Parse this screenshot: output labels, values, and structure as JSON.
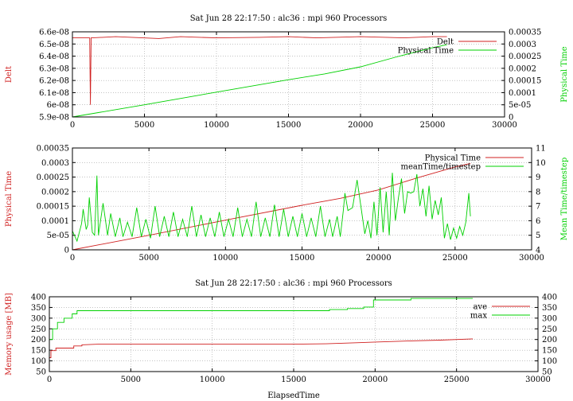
{
  "colors": {
    "red": "#d02020",
    "green": "#00d000"
  },
  "chart_data": [
    {
      "type": "line",
      "title": "Sat Jun 28 22:17:50 : alc36 : mpi 960 Processors",
      "xlabel": "",
      "ylabel": "Delt",
      "y2label": "Physical Time",
      "xlim": [
        0,
        30000
      ],
      "ylim": [
        5.9e-08,
        6.6e-08
      ],
      "y2lim": [
        0,
        0.00035
      ],
      "xticks": [
        0,
        5000,
        10000,
        15000,
        20000,
        25000,
        30000
      ],
      "xtick_labels": [
        "0",
        "5000",
        "10000",
        "15000",
        "20000",
        "25000",
        "30000"
      ],
      "yticks": [
        5.9e-08,
        6e-08,
        6.1e-08,
        6.2e-08,
        6.3e-08,
        6.4e-08,
        6.5e-08,
        6.6e-08
      ],
      "ytick_labels": [
        "5.9e-08",
        "6e-08",
        "6.1e-08",
        "6.2e-08",
        "6.3e-08",
        "6.4e-08",
        "6.5e-08",
        "6.6e-08"
      ],
      "y2ticks": [
        0,
        5e-05,
        0.0001,
        0.00015,
        0.0002,
        0.00025,
        0.0003,
        0.00035
      ],
      "y2tick_labels": [
        "0",
        "5e-05",
        "0.0001",
        "0.00015",
        "0.0002",
        "0.00025",
        "0.0003",
        "0.00035"
      ],
      "grid": true,
      "legend": "top-right",
      "series": [
        {
          "name": "Delt",
          "axis": "y",
          "color": "red",
          "x": [
            0,
            1200,
            1250,
            1300,
            1350,
            3000,
            6000,
            7500,
            10000,
            13000,
            15000,
            17000,
            20000,
            23000,
            25000,
            26000
          ],
          "y": [
            6.55e-08,
            6.55e-08,
            6e-08,
            6.55e-08,
            6.55e-08,
            6.56e-08,
            6.545e-08,
            6.56e-08,
            6.55e-08,
            6.555e-08,
            6.56e-08,
            6.55e-08,
            6.56e-08,
            6.55e-08,
            6.56e-08,
            6.56e-08
          ]
        },
        {
          "name": "Physical Time",
          "axis": "y2",
          "color": "green",
          "x": [
            0,
            5000,
            10000,
            15000,
            17500,
            20000,
            22500,
            25000,
            26000
          ],
          "y": [
            0,
            5e-05,
            0.000102,
            0.000153,
            0.000177,
            0.000206,
            0.000247,
            0.000285,
            0.000297
          ]
        }
      ]
    },
    {
      "type": "line",
      "title": "",
      "xlabel": "",
      "ylabel": "Physical Time",
      "y2label": "Mean Time/timestep",
      "xlim": [
        0,
        30000
      ],
      "ylim": [
        0,
        0.00035
      ],
      "y2lim": [
        4,
        11
      ],
      "xticks": [
        0,
        5000,
        10000,
        15000,
        20000,
        25000,
        30000
      ],
      "xtick_labels": [
        "0",
        "5000",
        "10000",
        "15000",
        "20000",
        "25000",
        "30000"
      ],
      "yticks": [
        0,
        5e-05,
        0.0001,
        0.00015,
        0.0002,
        0.00025,
        0.0003,
        0.00035
      ],
      "ytick_labels": [
        "0",
        "5e-05",
        "0.0001",
        "0.00015",
        "0.0002",
        "0.00025",
        "0.0003",
        "0.00035"
      ],
      "y2ticks": [
        4,
        5,
        6,
        7,
        8,
        9,
        10,
        11
      ],
      "y2tick_labels": [
        "4",
        "5",
        "6",
        "7",
        "8",
        "9",
        "10",
        "11"
      ],
      "grid": true,
      "legend": "top-right",
      "series": [
        {
          "name": "Physical Time",
          "axis": "y",
          "color": "red",
          "x": [
            0,
            5000,
            10000,
            15000,
            17500,
            20000,
            22500,
            25000,
            26000
          ],
          "y": [
            0,
            5e-05,
            0.000102,
            0.000153,
            0.000177,
            0.000206,
            0.000247,
            0.000285,
            0.000297
          ]
        },
        {
          "name": "meanTime/timestep",
          "axis": "y2",
          "color": "green",
          "x": [
            0,
            300,
            600,
            700,
            900,
            1000,
            1100,
            1300,
            1450,
            1600,
            1700,
            2000,
            2300,
            2500,
            2800,
            3100,
            3300,
            3600,
            3900,
            4200,
            4500,
            4800,
            5100,
            5400,
            5700,
            6000,
            6300,
            6600,
            6900,
            7200,
            7500,
            7800,
            8100,
            8400,
            8700,
            9000,
            9300,
            9600,
            9900,
            10200,
            10500,
            10800,
            11100,
            11400,
            11700,
            12000,
            12300,
            12600,
            12900,
            13200,
            13500,
            13800,
            14100,
            14400,
            14700,
            15000,
            15300,
            15600,
            15900,
            16200,
            16500,
            16800,
            17000,
            17300,
            17500,
            17700,
            17800,
            18000,
            18300,
            18600,
            18900,
            19100,
            19300,
            19500,
            19700,
            19900,
            20100,
            20300,
            20500,
            20700,
            20900,
            21100,
            21300,
            21500,
            21700,
            21900,
            22100,
            22300,
            22500,
            22700,
            22900,
            23100,
            23300,
            23500,
            23700,
            23900,
            24100,
            24300,
            24500,
            24700,
            24900,
            25100,
            25300,
            25500,
            25700,
            25900,
            26000
          ],
          "y": [
            5.3,
            4.6,
            5.8,
            6.8,
            5.4,
            5.7,
            7.6,
            5.2,
            5.0,
            9.1,
            5.0,
            7.2,
            5.0,
            6.5,
            4.9,
            6.2,
            4.9,
            5.9,
            4.9,
            6.9,
            4.9,
            6.1,
            4.8,
            7.0,
            4.9,
            6.3,
            4.9,
            6.6,
            4.9,
            6.1,
            4.9,
            7.0,
            4.9,
            6.4,
            4.9,
            6.2,
            4.9,
            6.6,
            4.9,
            6.1,
            4.9,
            6.9,
            4.9,
            6.1,
            4.9,
            7.3,
            4.9,
            6.2,
            4.9,
            7.1,
            4.9,
            6.8,
            4.9,
            6.3,
            4.9,
            6.5,
            4.9,
            6.2,
            4.9,
            7.0,
            4.9,
            6.1,
            4.9,
            6.3,
            4.9,
            6.7,
            7.9,
            6.7,
            6.9,
            8.8,
            6.6,
            5.1,
            6.0,
            4.8,
            7.3,
            5.0,
            8.3,
            5.2,
            8.0,
            5.0,
            9.3,
            6.0,
            7.6,
            8.9,
            6.5,
            8.0,
            7.9,
            8.0,
            9.2,
            7.0,
            8.2,
            6.3,
            8.4,
            6.1,
            7.4,
            6.4,
            7.6,
            4.8,
            5.8,
            4.7,
            5.5,
            4.8,
            5.6,
            5.0,
            5.9,
            7.9,
            6.3
          ]
        }
      ]
    },
    {
      "type": "line",
      "title": "Sat Jun 28 22:17:50 : alc36 : mpi 960 Processors",
      "xlabel": "ElapsedTime",
      "ylabel": "Memory usage [MB]",
      "y2label": "",
      "xlim": [
        0,
        30000
      ],
      "ylim": [
        50,
        400
      ],
      "y2lim": [
        50,
        400
      ],
      "xticks": [
        0,
        5000,
        10000,
        15000,
        20000,
        25000,
        30000
      ],
      "xtick_labels": [
        "0",
        "5000",
        "10000",
        "15000",
        "20000",
        "25000",
        "30000"
      ],
      "yticks": [
        50,
        100,
        150,
        200,
        250,
        300,
        350,
        400
      ],
      "ytick_labels": [
        "50",
        "100",
        "150",
        "200",
        "250",
        "300",
        "350",
        "400"
      ],
      "y2ticks": [
        50,
        100,
        150,
        200,
        250,
        300,
        350,
        400
      ],
      "y2tick_labels": [
        "50",
        "100",
        "150",
        "200",
        "250",
        "300",
        "350",
        "400"
      ],
      "grid": true,
      "legend": "top-right",
      "series": [
        {
          "name": "ave",
          "axis": "y",
          "color": "red",
          "x": [
            0,
            100,
            100,
            400,
            400,
            1500,
            1500,
            2000,
            2000,
            3000,
            15000,
            17000,
            19000,
            20000,
            22000,
            24000,
            26000
          ],
          "y": [
            115,
            115,
            148,
            148,
            160,
            160,
            170,
            170,
            175,
            178,
            178,
            180,
            185,
            188,
            193,
            197,
            203
          ]
        },
        {
          "name": "max",
          "axis": "y",
          "color": "green",
          "x": [
            0,
            200,
            200,
            500,
            500,
            900,
            900,
            1400,
            1400,
            1700,
            1700,
            17200,
            17200,
            18300,
            18300,
            19300,
            19300,
            19900,
            19900,
            22200,
            22200,
            26000
          ],
          "y": [
            200,
            200,
            250,
            250,
            280,
            280,
            300,
            300,
            320,
            320,
            335,
            335,
            340,
            340,
            345,
            345,
            352,
            352,
            385,
            385,
            392,
            392
          ]
        }
      ]
    }
  ]
}
